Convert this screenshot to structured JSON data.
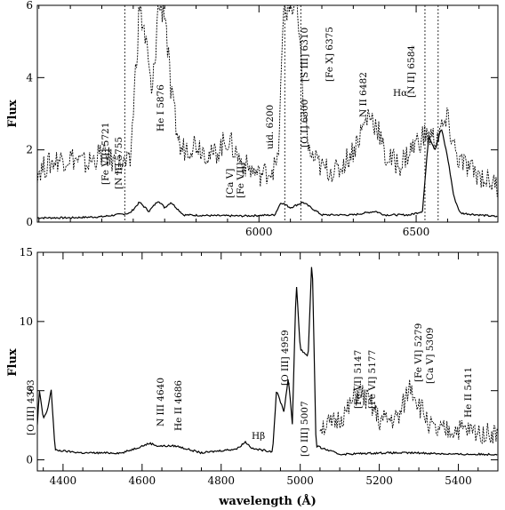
{
  "chart_data": [
    {
      "type": "line",
      "panel": "top",
      "xlim": [
        5295,
        6760
      ],
      "ylim": [
        0,
        6
      ],
      "xticks": [
        6000,
        6500
      ],
      "yticks": [
        0,
        2,
        4,
        6
      ],
      "ylabel": "Flux",
      "xlabel": "",
      "grid": false,
      "series": [
        {
          "style": "solid",
          "points": [
            [
              5295,
              0.12
            ],
            [
              5400,
              0.12
            ],
            [
              5500,
              0.15
            ],
            [
              5590,
              0.25
            ],
            [
              5620,
              0.55
            ],
            [
              5650,
              0.3
            ],
            [
              5680,
              0.6
            ],
            [
              5700,
              0.4
            ],
            [
              5720,
              0.55
            ],
            [
              5760,
              0.2
            ],
            [
              5850,
              0.18
            ],
            [
              5950,
              0.17
            ],
            [
              6050,
              0.2
            ],
            [
              6070,
              0.55
            ],
            [
              6100,
              0.4
            ],
            [
              6140,
              0.55
            ],
            [
              6200,
              0.2
            ],
            [
              6300,
              0.2
            ],
            [
              6370,
              0.3
            ],
            [
              6400,
              0.2
            ],
            [
              6480,
              0.2
            ],
            [
              6520,
              0.3
            ],
            [
              6540,
              2.4
            ],
            [
              6560,
              2.0
            ],
            [
              6580,
              2.6
            ],
            [
              6600,
              1.8
            ],
            [
              6620,
              0.7
            ],
            [
              6640,
              0.25
            ],
            [
              6700,
              0.2
            ],
            [
              6760,
              0.15
            ]
          ]
        },
        {
          "style": "dashed",
          "points": [
            [
              5295,
              1.4
            ],
            [
              5350,
              1.7
            ],
            [
              5400,
              1.8
            ],
            [
              5450,
              1.6
            ],
            [
              5500,
              1.9
            ],
            [
              5550,
              1.6
            ],
            [
              5590,
              1.6
            ],
            [
              5620,
              6.0
            ],
            [
              5640,
              5.0
            ],
            [
              5660,
              3.4
            ],
            [
              5680,
              6.0
            ],
            [
              5700,
              6.0
            ],
            [
              5720,
              3.5
            ],
            [
              5750,
              2.0
            ],
            [
              5800,
              2.2
            ],
            [
              5850,
              1.8
            ],
            [
              5900,
              2.3
            ],
            [
              5950,
              1.6
            ],
            [
              6000,
              1.3
            ],
            [
              6030,
              1.4
            ],
            [
              6060,
              1.6
            ],
            [
              6080,
              6.0
            ],
            [
              6120,
              6.0
            ],
            [
              6140,
              3.5
            ],
            [
              6160,
              1.9
            ],
            [
              6200,
              1.5
            ],
            [
              6250,
              1.4
            ],
            [
              6300,
              2.0
            ],
            [
              6350,
              3.0
            ],
            [
              6380,
              2.6
            ],
            [
              6400,
              1.8
            ],
            [
              6450,
              1.6
            ],
            [
              6500,
              2.2
            ],
            [
              6530,
              2.4
            ],
            [
              6560,
              2.3
            ],
            [
              6600,
              2.8
            ],
            [
              6630,
              1.8
            ],
            [
              6650,
              1.6
            ],
            [
              6700,
              1.3
            ],
            [
              6760,
              1.0
            ]
          ]
        }
      ],
      "annotations": [
        "[Fe VII] 5721",
        "[N II] 5755",
        "He I 5876",
        "[Ca V]",
        "[Fe VII]",
        "uid. 6200",
        "[O I] 6300",
        "[S III] 6310",
        "[Fe X] 6375",
        "N II 6482",
        "Hα",
        "[N II] 6584"
      ]
    },
    {
      "type": "line",
      "panel": "bottom",
      "xlim": [
        4335,
        5500
      ],
      "ylim": [
        -0.8,
        15
      ],
      "xticks": [
        4400,
        4600,
        4800,
        5000,
        5200,
        5400
      ],
      "yticks": [
        0,
        5,
        10,
        15
      ],
      "ylabel": "Flux",
      "xlabel": "wavelength (Å)",
      "grid": false,
      "series": [
        {
          "style": "solid",
          "points": [
            [
              4335,
              2.5
            ],
            [
              4340,
              5.0
            ],
            [
              4350,
              3.0
            ],
            [
              4360,
              3.5
            ],
            [
              4370,
              5.1
            ],
            [
              4380,
              0.7
            ],
            [
              4450,
              0.5
            ],
            [
              4550,
              0.5
            ],
            [
              4620,
              1.2
            ],
            [
              4640,
              1.0
            ],
            [
              4686,
              1.0
            ],
            [
              4750,
              0.5
            ],
            [
              4840,
              0.8
            ],
            [
              4861,
              1.3
            ],
            [
              4880,
              0.8
            ],
            [
              4930,
              0.6
            ],
            [
              4940,
              5.0
            ],
            [
              4959,
              3.5
            ],
            [
              4970,
              6.0
            ],
            [
              4980,
              2.5
            ],
            [
              4990,
              13.0
            ],
            [
              5000,
              8.0
            ],
            [
              5020,
              7.5
            ],
            [
              5030,
              15.0
            ],
            [
              5040,
              1.0
            ],
            [
              5100,
              0.4
            ],
            [
              5200,
              0.5
            ],
            [
              5300,
              0.5
            ],
            [
              5400,
              0.4
            ],
            [
              5500,
              0.4
            ]
          ]
        },
        {
          "style": "dashed",
          "points": [
            [
              5050,
              2.5
            ],
            [
              5080,
              2.5
            ],
            [
              5120,
              3.5
            ],
            [
              5147,
              5.0
            ],
            [
              5177,
              4.0
            ],
            [
              5200,
              2.8
            ],
            [
              5250,
              3.0
            ],
            [
              5279,
              5.5
            ],
            [
              5300,
              4.0
            ],
            [
              5340,
              2.0
            ],
            [
              5400,
              2.2
            ],
            [
              5450,
              2.0
            ],
            [
              5500,
              1.9
            ]
          ]
        }
      ],
      "annotations": [
        "[O III] 4363",
        "N III 4640",
        "He II 4686",
        "Hβ",
        "[O III] 4959",
        "[O III] 5007",
        "[Fe VI] 5147",
        "[Fe VI] 5177",
        "[Fe VI] 5279",
        "[Ca V] 5309",
        "He II 5411"
      ]
    }
  ]
}
